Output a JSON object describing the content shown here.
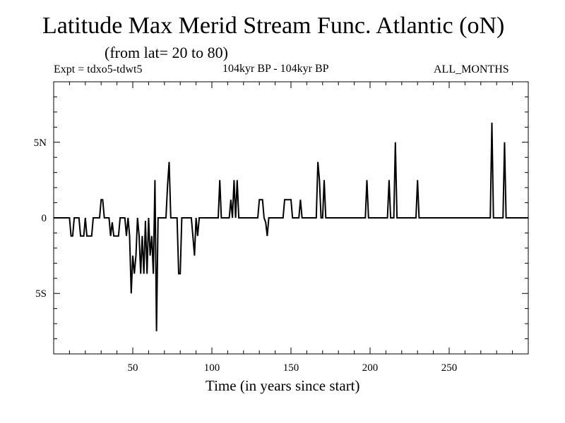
{
  "chart_data": {
    "type": "line",
    "title": "Latitude Max Merid Stream Func. Atlantic (oN)",
    "subtitle": "(from lat= 20 to 80)",
    "experiment": "Expt = tdxo5-tdwt5",
    "period": "104kyr BP - 104kyr BP",
    "season": "ALL_MONTHS",
    "xlabel": "Time (in years since start)",
    "ylabel": "",
    "xlim": [
      0,
      300
    ],
    "ylim": [
      -9,
      9
    ],
    "x_ticks": [
      50,
      100,
      150,
      200,
      250
    ],
    "x_tick_labels": [
      "50",
      "100",
      "150",
      "200",
      "250"
    ],
    "y_ticks": [
      5,
      0,
      -5
    ],
    "y_tick_labels": [
      "5N",
      "0",
      "5S"
    ],
    "grid": false,
    "series": [
      {
        "name": "latitude_max",
        "points": [
          [
            0,
            0
          ],
          [
            10,
            0
          ],
          [
            11,
            -1.2
          ],
          [
            12,
            -1.2
          ],
          [
            13,
            0
          ],
          [
            15,
            0
          ],
          [
            16,
            0
          ],
          [
            17,
            -1.2
          ],
          [
            19,
            -1.2
          ],
          [
            20,
            0
          ],
          [
            21,
            -1.2
          ],
          [
            24,
            -1.2
          ],
          [
            25,
            0
          ],
          [
            29,
            0
          ],
          [
            30,
            1.2
          ],
          [
            31,
            1.2
          ],
          [
            32,
            0
          ],
          [
            35,
            0
          ],
          [
            36,
            -1.2
          ],
          [
            37,
            -0.3
          ],
          [
            38,
            -1.2
          ],
          [
            41,
            -1.2
          ],
          [
            42,
            0
          ],
          [
            45,
            0
          ],
          [
            46,
            -1.2
          ],
          [
            47,
            0
          ],
          [
            48,
            -1.2
          ],
          [
            49,
            -5
          ],
          [
            50,
            -2.5
          ],
          [
            51,
            -3.7
          ],
          [
            52,
            -2.5
          ],
          [
            53,
            0
          ],
          [
            54,
            -1.2
          ],
          [
            55,
            -3.7
          ],
          [
            56,
            -1.2
          ],
          [
            57,
            -3.7
          ],
          [
            58,
            -0.2
          ],
          [
            59,
            -3.7
          ],
          [
            60,
            0
          ],
          [
            61,
            -2.5
          ],
          [
            62,
            -1.2
          ],
          [
            63,
            -3.7
          ],
          [
            64,
            2.5
          ],
          [
            65,
            -7.5
          ],
          [
            66,
            0
          ],
          [
            71,
            0
          ],
          [
            72,
            2.2
          ],
          [
            73,
            3.7
          ],
          [
            74,
            0
          ],
          [
            75,
            0
          ],
          [
            76,
            0
          ],
          [
            77,
            0
          ],
          [
            78,
            0
          ],
          [
            79,
            -3.7
          ],
          [
            80,
            -3.7
          ],
          [
            81,
            0
          ],
          [
            87,
            0
          ],
          [
            88,
            -1.2
          ],
          [
            89,
            -2.5
          ],
          [
            90,
            0
          ],
          [
            91,
            -1.2
          ],
          [
            92,
            0
          ],
          [
            93,
            0
          ],
          [
            94,
            0
          ],
          [
            95,
            0
          ],
          [
            104,
            0
          ],
          [
            105,
            2.5
          ],
          [
            106,
            0
          ],
          [
            111,
            0
          ],
          [
            112,
            1.2
          ],
          [
            113,
            0
          ],
          [
            114,
            2.5
          ],
          [
            115,
            0
          ],
          [
            116,
            2.5
          ],
          [
            117,
            0
          ],
          [
            129,
            0
          ],
          [
            130,
            1.2
          ],
          [
            132,
            1.2
          ],
          [
            133,
            0
          ],
          [
            134,
            -0.3
          ],
          [
            135,
            -1.2
          ],
          [
            136,
            0
          ],
          [
            145,
            0
          ],
          [
            146,
            1.2
          ],
          [
            150,
            1.2
          ],
          [
            151,
            0
          ],
          [
            155,
            0
          ],
          [
            156,
            1.2
          ],
          [
            157,
            0
          ],
          [
            166,
            0
          ],
          [
            167,
            3.7
          ],
          [
            168,
            2.5
          ],
          [
            169,
            0
          ],
          [
            170,
            0
          ],
          [
            171,
            2.5
          ],
          [
            172,
            0
          ],
          [
            197,
            0
          ],
          [
            198,
            2.5
          ],
          [
            199,
            0
          ],
          [
            211,
            0
          ],
          [
            212,
            2.5
          ],
          [
            213,
            0
          ],
          [
            215,
            0
          ],
          [
            216,
            5.0
          ],
          [
            217,
            0
          ],
          [
            229,
            0
          ],
          [
            230,
            2.5
          ],
          [
            231,
            0
          ],
          [
            276,
            0
          ],
          [
            277,
            6.3
          ],
          [
            278,
            0
          ],
          [
            284,
            0
          ],
          [
            285,
            5.0
          ],
          [
            286,
            0
          ],
          [
            300,
            0
          ]
        ]
      }
    ]
  }
}
